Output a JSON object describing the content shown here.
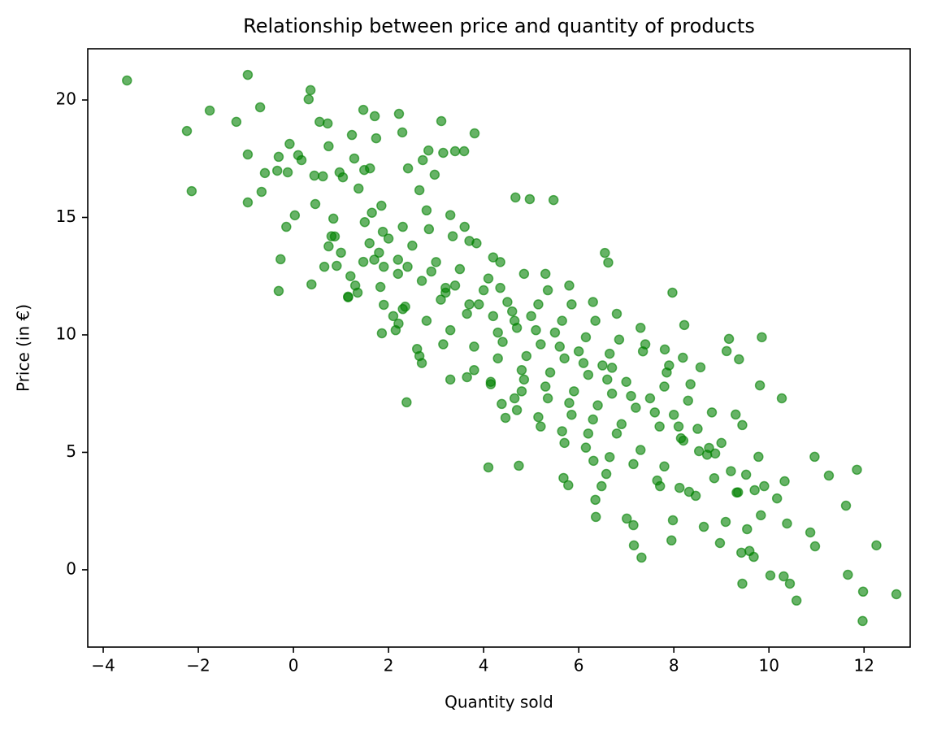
{
  "chart_data": {
    "type": "scatter",
    "title": "Relationship between price and quantity of products",
    "x_label": "Quantity sold",
    "y_label": "Price (in €)",
    "color": "#008000",
    "xlim": [
      -4.325,
      12.97
    ],
    "ylim": [
      -3.29,
      22.18
    ],
    "xticks": [
      {
        "value": -4,
        "label": "−4"
      },
      {
        "value": -2,
        "label": "−2"
      },
      0,
      2,
      4,
      6,
      8,
      10,
      12
    ],
    "yticks": [
      0,
      5,
      10,
      15,
      20
    ],
    "x": [
      -3.5,
      -2.24,
      -2.14,
      -1.76,
      -1.2,
      -0.96,
      -0.96,
      -0.96,
      -0.7,
      -0.67,
      -0.6,
      -0.34,
      -0.31,
      -0.27,
      -0.31,
      -0.15,
      -0.12,
      -0.08,
      0.03,
      0.1,
      0.17,
      0.32,
      0.36,
      0.38,
      0.44,
      0.46,
      0.55,
      0.62,
      0.72,
      0.74,
      0.74,
      0.84,
      0.87,
      0.91,
      0.97,
      1.04,
      1.15,
      1.23,
      1.28,
      1.37,
      1.47,
      1.47,
      1.49,
      1.61,
      1.71,
      1.74,
      1.83,
      1.86,
      1.88,
      1.9,
      2.22,
      2.29,
      2.38,
      2.41,
      2.21,
      2.65,
      2.84,
      2.72,
      2.97,
      3.11,
      3.15,
      3.3,
      3.4,
      3.59,
      3.81,
      4.1,
      4.38,
      4.46,
      4.74,
      4.67,
      4.97,
      5.47,
      6.55,
      6.62,
      5.78,
      5.68,
      6.31,
      6.35,
      6.36,
      6.48,
      6.58,
      7.01,
      7.15,
      7.16,
      7.32,
      7.71,
      7.95,
      7.98,
      7.97,
      8.12,
      8.32,
      8.46,
      8.63,
      8.74,
      8.97,
      9.09,
      9.11,
      9.16,
      9.32,
      9.37,
      9.42,
      9.44,
      9.54,
      9.59,
      9.68,
      9.85,
      9.83,
      10.03,
      10.27,
      10.31,
      10.38,
      10.44,
      10.58,
      10.96,
      11.26,
      10.87,
      10.97,
      11.85,
      11.62,
      11.66,
      11.98,
      11.97,
      12.26,
      12.68,
      10.33,
      10.17,
      9.9,
      9.7,
      9.81,
      9.78,
      9.52,
      9.44,
      9.3,
      8.87,
      8.56,
      8.53,
      8.19,
      8.22,
      7.81,
      1,
      1.2,
      0.8,
      1.35,
      0.65,
      1.5,
      1.7,
      1.3,
      1.85,
      1.15,
      1.6,
      2,
      2.2,
      1.8,
      2.35,
      1.65,
      2.1,
      1.9,
      2.3,
      2.5,
      2.7,
      2.3,
      2.85,
      2.15,
      2.6,
      2.4,
      2.8,
      2.2,
      3,
      3.2,
      2.8,
      3.35,
      2.65,
      3.1,
      2.9,
      3.3,
      2.7,
      3.5,
      3.7,
      3.3,
      3.85,
      3.15,
      3.6,
      3.4,
      3.8,
      3.2,
      3.65,
      4,
      4.2,
      3.8,
      4.35,
      3.65,
      4.1,
      3.9,
      4.3,
      3.7,
      4.15,
      4.5,
      4.7,
      4.3,
      4.85,
      4.15,
      4.6,
      4.4,
      4.8,
      4.2,
      4.65,
      4.35,
      5,
      5.2,
      4.8,
      5.35,
      4.65,
      5.1,
      4.9,
      5.3,
      4.7,
      5.15,
      4.85,
      5.5,
      5.7,
      5.3,
      5.85,
      5.15,
      5.6,
      5.4,
      5.8,
      5.2,
      5.65,
      5.35,
      6,
      6.2,
      5.8,
      6.35,
      5.65,
      6.1,
      5.9,
      6.3,
      5.7,
      6.15,
      5.85,
      6.5,
      6.7,
      6.3,
      6.85,
      6.15,
      6.6,
      6.4,
      6.8,
      6.2,
      6.65,
      7,
      7.2,
      6.8,
      7.35,
      6.65,
      7.1,
      6.9,
      7.3,
      6.7,
      7.5,
      7.7,
      7.3,
      7.85,
      7.15,
      7.6,
      7.4,
      7.8,
      8,
      8.2,
      7.8,
      8.35,
      7.65,
      8.1,
      7.9,
      8.5,
      8.7,
      8.3,
      8.85,
      8.15,
      9,
      9.2,
      8.8,
      9.35
    ],
    "values": [
      20.83,
      18.68,
      16.12,
      19.55,
      19.07,
      21.07,
      17.68,
      15.64,
      19.69,
      16.09,
      16.89,
      16.99,
      17.58,
      13.22,
      11.87,
      14.6,
      16.92,
      18.13,
      15.09,
      17.65,
      17.44,
      20.03,
      20.42,
      12.15,
      16.78,
      15.57,
      19.07,
      16.75,
      19.0,
      18.03,
      13.77,
      14.95,
      14.19,
      12.94,
      16.92,
      16.71,
      11.63,
      18.51,
      17.51,
      16.23,
      19.58,
      13.11,
      17.02,
      17.09,
      19.31,
      18.37,
      12.04,
      10.07,
      14.39,
      11.28,
      19.41,
      18.62,
      7.13,
      17.09,
      10.48,
      16.16,
      17.85,
      17.44,
      16.82,
      19.1,
      17.75,
      8.1,
      17.82,
      17.82,
      18.58,
      4.36,
      7.06,
      6.47,
      4.43,
      15.85,
      15.78,
      15.74,
      13.49,
      13.08,
      3.6,
      3.91,
      4.64,
      2.98,
      2.25,
      3.56,
      4.08,
      2.18,
      1.9,
      1.04,
      0.52,
      3.56,
      1.25,
      2.11,
      11.8,
      3.49,
      3.32,
      3.15,
      1.83,
      5.19,
      1.14,
      2.04,
      9.31,
      9.83,
      3.29,
      8.96,
      0.73,
      -0.59,
      1.73,
      0.8,
      0.55,
      9.9,
      2.32,
      -0.24,
      7.3,
      -0.28,
      1.97,
      -0.59,
      -1.31,
      4.81,
      4.01,
      1.59,
      1.0,
      4.26,
      2.73,
      -0.21,
      -0.93,
      -2.18,
      1.04,
      -1.04,
      3.77,
      3.04,
      3.56,
      3.39,
      7.85,
      4.81,
      4.05,
      6.16,
      6.61,
      4.95,
      8.62,
      5.05,
      9.03,
      10.42,
      9.38,
      13.5,
      12.5,
      14.2,
      11.8,
      12.9,
      14.8,
      13.2,
      12.1,
      15.5,
      11.6,
      13.9,
      14.1,
      12.6,
      13.5,
      11.2,
      15.2,
      10.8,
      12.9,
      14.6,
      13.8,
      12.3,
      11.1,
      14.5,
      10.2,
      9.4,
      12.9,
      15.3,
      13.2,
      13.1,
      12.0,
      10.6,
      14.2,
      9.1,
      11.5,
      12.7,
      15.1,
      8.8,
      12.8,
      11.3,
      10.2,
      13.9,
      9.6,
      14.6,
      12.1,
      8.5,
      11.8,
      10.9,
      11.9,
      10.8,
      9.5,
      13.1,
      8.2,
      12.4,
      11.3,
      10.1,
      14.0,
      7.9,
      11.4,
      10.3,
      9.0,
      12.6,
      8.0,
      11.0,
      9.7,
      7.6,
      13.3,
      10.6,
      12.0,
      10.8,
      9.6,
      8.5,
      11.9,
      7.3,
      10.2,
      9.1,
      12.6,
      6.8,
      11.3,
      8.1,
      10.1,
      9.0,
      7.8,
      11.3,
      6.5,
      9.5,
      8.4,
      12.1,
      6.1,
      10.6,
      7.3,
      9.3,
      8.3,
      7.1,
      10.6,
      5.9,
      8.8,
      7.6,
      11.4,
      5.4,
      9.9,
      6.6,
      8.7,
      7.5,
      6.4,
      9.8,
      5.2,
      8.1,
      7.0,
      10.9,
      5.8,
      9.2,
      8.0,
      6.9,
      5.8,
      9.3,
      4.8,
      7.4,
      6.2,
      10.3,
      8.6,
      7.3,
      6.1,
      5.1,
      8.4,
      4.5,
      6.7,
      9.6,
      7.8,
      6.6,
      5.5,
      4.4,
      7.9,
      3.8,
      6.1,
      8.7,
      6.0,
      4.9,
      7.2,
      3.9,
      5.6,
      5.4,
      4.2,
      6.7,
      3.3
    ]
  }
}
